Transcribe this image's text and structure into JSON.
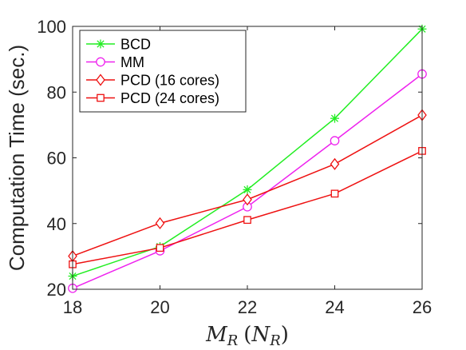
{
  "chart_data": {
    "type": "line",
    "x": [
      18,
      20,
      22,
      24,
      26
    ],
    "xlim": [
      18,
      26
    ],
    "ylim": [
      20,
      100
    ],
    "xticks": [
      "18",
      "20",
      "22",
      "24",
      "26"
    ],
    "yticks": [
      "20",
      "40",
      "60",
      "80",
      "100"
    ],
    "ylabel": "Computation Time (sec.)",
    "xlabel": {
      "M": "M",
      "sub1": "R",
      "open": "(",
      "N": "N",
      "sub2": "R",
      "close": ")"
    },
    "grid": false,
    "legend_position": "top-left",
    "series": [
      {
        "name": "BCD",
        "color": "#22ee22",
        "marker": "asterisk",
        "values": [
          24,
          33,
          50.3,
          72,
          99.2
        ]
      },
      {
        "name": "MM",
        "color": "#ee22ee",
        "marker": "circle",
        "values": [
          20.3,
          31.7,
          45.1,
          65.2,
          85.5
        ]
      },
      {
        "name": "PCD (16 cores)",
        "color": "#ee1111",
        "marker": "diamond",
        "values": [
          30.1,
          40.1,
          47.3,
          58.1,
          73
        ]
      },
      {
        "name": "PCD (24 cores)",
        "color": "#ee1111",
        "marker": "square",
        "values": [
          27.6,
          32.6,
          41.1,
          49.1,
          62.1
        ]
      }
    ]
  }
}
